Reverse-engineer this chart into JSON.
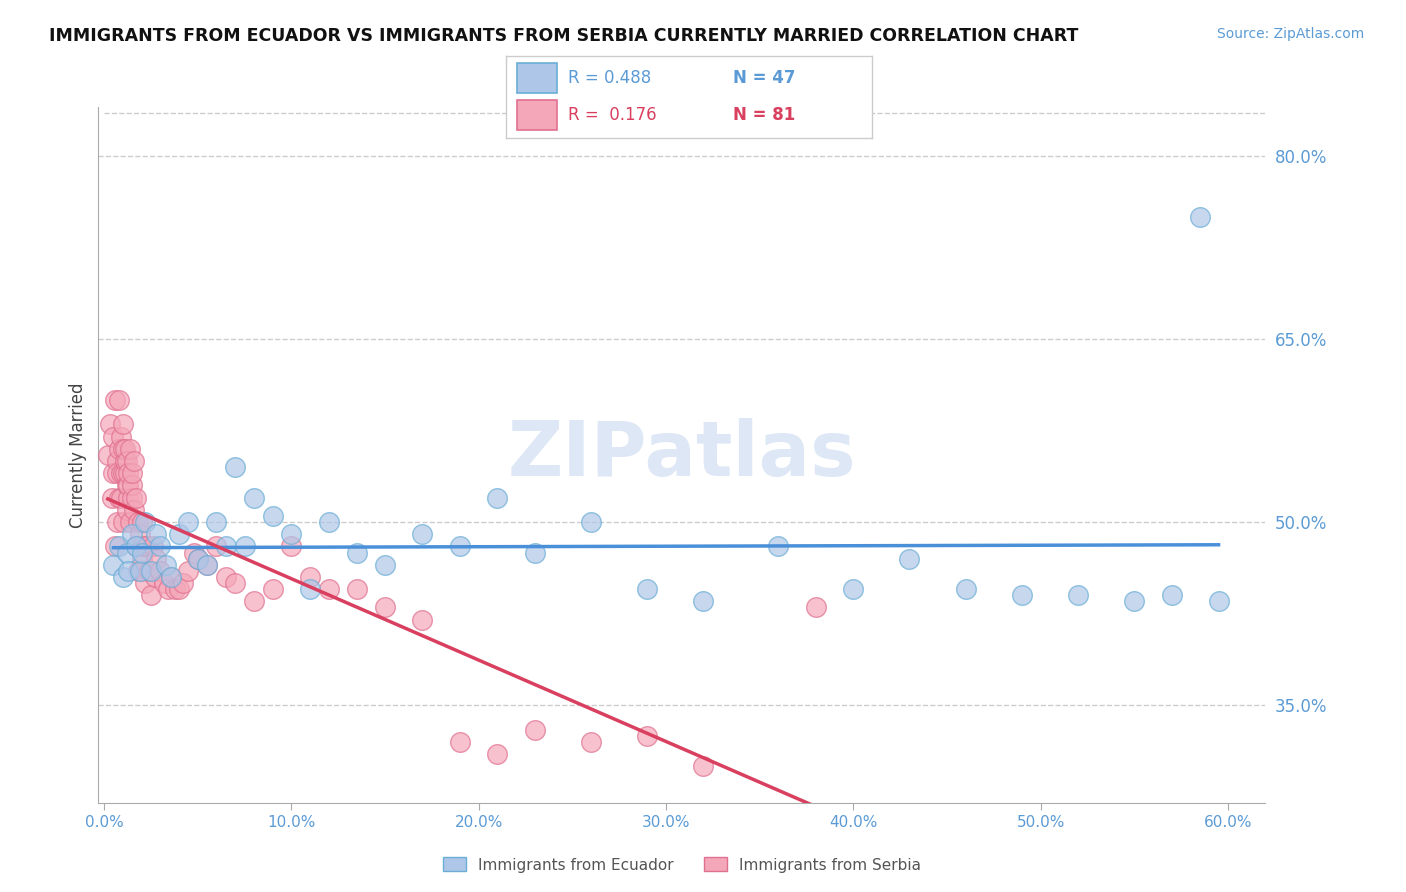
{
  "title": "IMMIGRANTS FROM ECUADOR VS IMMIGRANTS FROM SERBIA CURRENTLY MARRIED CORRELATION CHART",
  "source": "Source: ZipAtlas.com",
  "ylabel": "Currently Married",
  "xlim": [
    -0.003,
    0.62
  ],
  "ylim": [
    0.27,
    0.84
  ],
  "yticks": [
    0.35,
    0.5,
    0.65,
    0.8
  ],
  "ytick_labels": [
    "35.0%",
    "50.0%",
    "65.0%",
    "80.0%"
  ],
  "xticks": [
    0.0,
    0.1,
    0.2,
    0.3,
    0.4,
    0.5,
    0.6
  ],
  "xtick_labels": [
    "0.0%",
    "10.0%",
    "20.0%",
    "30.0%",
    "40.0%",
    "50.0%",
    "60.0%"
  ],
  "ecuador_color": "#aec6e8",
  "serbia_color": "#f4a7b9",
  "ecuador_edge": "#6aaed6",
  "serbia_edge": "#e07090",
  "trend_ecuador_color": "#4a90d9",
  "trend_serbia_color": "#d94060",
  "R_ecuador": 0.488,
  "N_ecuador": 47,
  "R_serbia": 0.176,
  "N_serbia": 81,
  "watermark": "ZIPatlas",
  "watermark_color": "#c8d8f0",
  "legend_label_ecuador": "Immigrants from Ecuador",
  "legend_label_serbia": "Immigrants from Serbia",
  "ecuador_x": [
    0.005,
    0.008,
    0.01,
    0.012,
    0.013,
    0.015,
    0.017,
    0.019,
    0.02,
    0.022,
    0.025,
    0.028,
    0.03,
    0.033,
    0.036,
    0.04,
    0.045,
    0.05,
    0.055,
    0.06,
    0.065,
    0.07,
    0.075,
    0.08,
    0.09,
    0.1,
    0.11,
    0.12,
    0.135,
    0.15,
    0.17,
    0.19,
    0.21,
    0.23,
    0.26,
    0.29,
    0.32,
    0.36,
    0.4,
    0.43,
    0.46,
    0.49,
    0.52,
    0.55,
    0.57,
    0.585,
    0.595
  ],
  "ecuador_y": [
    0.465,
    0.48,
    0.455,
    0.475,
    0.46,
    0.49,
    0.48,
    0.46,
    0.475,
    0.5,
    0.46,
    0.49,
    0.48,
    0.465,
    0.455,
    0.49,
    0.5,
    0.47,
    0.465,
    0.5,
    0.48,
    0.545,
    0.48,
    0.52,
    0.505,
    0.49,
    0.445,
    0.5,
    0.475,
    0.465,
    0.49,
    0.48,
    0.52,
    0.475,
    0.5,
    0.445,
    0.435,
    0.48,
    0.445,
    0.47,
    0.445,
    0.44,
    0.44,
    0.435,
    0.44,
    0.75,
    0.435
  ],
  "serbia_x": [
    0.002,
    0.003,
    0.004,
    0.005,
    0.005,
    0.006,
    0.006,
    0.007,
    0.007,
    0.007,
    0.008,
    0.008,
    0.008,
    0.009,
    0.009,
    0.009,
    0.01,
    0.01,
    0.01,
    0.01,
    0.011,
    0.011,
    0.011,
    0.012,
    0.012,
    0.012,
    0.013,
    0.013,
    0.013,
    0.014,
    0.014,
    0.015,
    0.015,
    0.015,
    0.016,
    0.016,
    0.017,
    0.017,
    0.018,
    0.018,
    0.019,
    0.02,
    0.02,
    0.02,
    0.021,
    0.022,
    0.023,
    0.024,
    0.025,
    0.026,
    0.027,
    0.028,
    0.03,
    0.032,
    0.034,
    0.036,
    0.038,
    0.04,
    0.042,
    0.045,
    0.048,
    0.05,
    0.055,
    0.06,
    0.065,
    0.07,
    0.08,
    0.09,
    0.1,
    0.11,
    0.12,
    0.135,
    0.15,
    0.17,
    0.19,
    0.21,
    0.23,
    0.26,
    0.29,
    0.32,
    0.38
  ],
  "serbia_y": [
    0.555,
    0.58,
    0.52,
    0.54,
    0.57,
    0.6,
    0.48,
    0.55,
    0.5,
    0.54,
    0.56,
    0.6,
    0.52,
    0.57,
    0.54,
    0.52,
    0.56,
    0.58,
    0.54,
    0.5,
    0.54,
    0.55,
    0.56,
    0.51,
    0.53,
    0.55,
    0.52,
    0.53,
    0.54,
    0.56,
    0.5,
    0.52,
    0.53,
    0.54,
    0.55,
    0.51,
    0.52,
    0.48,
    0.5,
    0.46,
    0.49,
    0.47,
    0.46,
    0.5,
    0.48,
    0.45,
    0.48,
    0.46,
    0.44,
    0.48,
    0.455,
    0.47,
    0.46,
    0.45,
    0.445,
    0.455,
    0.445,
    0.445,
    0.45,
    0.46,
    0.475,
    0.47,
    0.465,
    0.48,
    0.455,
    0.45,
    0.435,
    0.445,
    0.48,
    0.455,
    0.445,
    0.445,
    0.43,
    0.42,
    0.32,
    0.31,
    0.33,
    0.32,
    0.325,
    0.3,
    0.43
  ],
  "dashed_line_x": [
    0.0,
    0.62
  ],
  "dashed_line_y": [
    0.835,
    0.835
  ]
}
